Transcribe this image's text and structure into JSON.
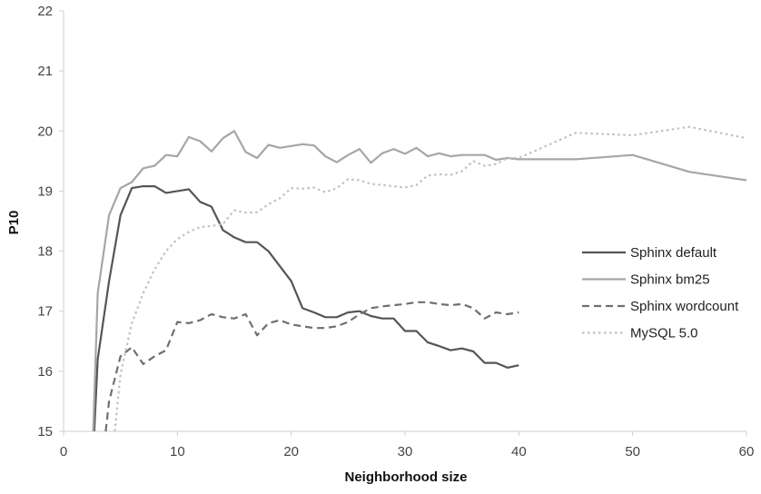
{
  "chart_data": {
    "type": "line",
    "title": "",
    "xlabel": "Neighborhood size",
    "ylabel": "P10",
    "xlim": [
      0,
      60
    ],
    "ylim": [
      15,
      22
    ],
    "x_ticks": [
      0,
      10,
      20,
      30,
      40,
      50,
      60
    ],
    "y_ticks": [
      15,
      16,
      17,
      18,
      19,
      20,
      21,
      22
    ],
    "grid": false,
    "legend_position": "right",
    "series": [
      {
        "name": "Sphinx default",
        "color": "#555555",
        "style": "solid",
        "points": [
          [
            2.7,
            15.0
          ],
          [
            3,
            16.2
          ],
          [
            4,
            17.5
          ],
          [
            5,
            18.6
          ],
          [
            6,
            19.05
          ],
          [
            7,
            19.08
          ],
          [
            8,
            19.08
          ],
          [
            9,
            18.97
          ],
          [
            10,
            19.0
          ],
          [
            11,
            19.03
          ],
          [
            12,
            18.82
          ],
          [
            13,
            18.74
          ],
          [
            14,
            18.35
          ],
          [
            15,
            18.23
          ],
          [
            16,
            18.15
          ],
          [
            17,
            18.15
          ],
          [
            18,
            18.0
          ],
          [
            19,
            17.75
          ],
          [
            20,
            17.5
          ],
          [
            21,
            17.05
          ],
          [
            22,
            16.98
          ],
          [
            23,
            16.9
          ],
          [
            24,
            16.9
          ],
          [
            25,
            16.98
          ],
          [
            26,
            17.0
          ],
          [
            27,
            16.92
          ],
          [
            28,
            16.88
          ],
          [
            29,
            16.88
          ],
          [
            30,
            16.67
          ],
          [
            31,
            16.67
          ],
          [
            32,
            16.48
          ],
          [
            33,
            16.42
          ],
          [
            34,
            16.35
          ],
          [
            35,
            16.38
          ],
          [
            36,
            16.33
          ],
          [
            37,
            16.14
          ],
          [
            38,
            16.14
          ],
          [
            39,
            16.06
          ],
          [
            40,
            16.1
          ]
        ]
      },
      {
        "name": "Sphinx bm25",
        "color": "#a6a6a6",
        "style": "solid",
        "points": [
          [
            2.6,
            15.0
          ],
          [
            3,
            17.3
          ],
          [
            4,
            18.6
          ],
          [
            5,
            19.05
          ],
          [
            6,
            19.15
          ],
          [
            7,
            19.38
          ],
          [
            8,
            19.42
          ],
          [
            9,
            19.6
          ],
          [
            10,
            19.58
          ],
          [
            11,
            19.9
          ],
          [
            12,
            19.83
          ],
          [
            13,
            19.66
          ],
          [
            14,
            19.88
          ],
          [
            15,
            20.0
          ],
          [
            16,
            19.65
          ],
          [
            17,
            19.55
          ],
          [
            18,
            19.77
          ],
          [
            19,
            19.72
          ],
          [
            20,
            19.75
          ],
          [
            21,
            19.78
          ],
          [
            22,
            19.76
          ],
          [
            23,
            19.58
          ],
          [
            24,
            19.48
          ],
          [
            25,
            19.6
          ],
          [
            26,
            19.7
          ],
          [
            27,
            19.47
          ],
          [
            28,
            19.63
          ],
          [
            29,
            19.7
          ],
          [
            30,
            19.62
          ],
          [
            31,
            19.72
          ],
          [
            32,
            19.58
          ],
          [
            33,
            19.63
          ],
          [
            34,
            19.58
          ],
          [
            35,
            19.6
          ],
          [
            36,
            19.6
          ],
          [
            37,
            19.6
          ],
          [
            38,
            19.52
          ],
          [
            39,
            19.55
          ],
          [
            40,
            19.53
          ],
          [
            45,
            19.53
          ],
          [
            50,
            19.6
          ],
          [
            55,
            19.32
          ],
          [
            60,
            19.18
          ]
        ]
      },
      {
        "name": "Sphinx wordcount",
        "color": "#6f6f6f",
        "style": "dashed",
        "points": [
          [
            3.7,
            15.0
          ],
          [
            4,
            15.5
          ],
          [
            5,
            16.25
          ],
          [
            6,
            16.4
          ],
          [
            7,
            16.12
          ],
          [
            8,
            16.25
          ],
          [
            9,
            16.35
          ],
          [
            10,
            16.82
          ],
          [
            11,
            16.8
          ],
          [
            12,
            16.85
          ],
          [
            13,
            16.95
          ],
          [
            14,
            16.9
          ],
          [
            15,
            16.88
          ],
          [
            16,
            16.95
          ],
          [
            17,
            16.6
          ],
          [
            18,
            16.8
          ],
          [
            19,
            16.85
          ],
          [
            20,
            16.78
          ],
          [
            21,
            16.75
          ],
          [
            22,
            16.72
          ],
          [
            23,
            16.72
          ],
          [
            24,
            16.75
          ],
          [
            25,
            16.82
          ],
          [
            26,
            16.95
          ],
          [
            27,
            17.05
          ],
          [
            28,
            17.08
          ],
          [
            29,
            17.1
          ],
          [
            30,
            17.12
          ],
          [
            31,
            17.15
          ],
          [
            32,
            17.15
          ],
          [
            33,
            17.12
          ],
          [
            34,
            17.1
          ],
          [
            35,
            17.12
          ],
          [
            36,
            17.05
          ],
          [
            37,
            16.88
          ],
          [
            38,
            16.98
          ],
          [
            39,
            16.95
          ],
          [
            40,
            16.98
          ]
        ]
      },
      {
        "name": "MySQL 5.0",
        "color": "#c0c0c0",
        "style": "dotted",
        "points": [
          [
            4.5,
            15.0
          ],
          [
            5,
            15.95
          ],
          [
            6,
            16.8
          ],
          [
            7,
            17.3
          ],
          [
            8,
            17.7
          ],
          [
            9,
            18.0
          ],
          [
            10,
            18.2
          ],
          [
            11,
            18.32
          ],
          [
            12,
            18.4
          ],
          [
            13,
            18.42
          ],
          [
            14,
            18.45
          ],
          [
            15,
            18.68
          ],
          [
            16,
            18.64
          ],
          [
            17,
            18.65
          ],
          [
            18,
            18.78
          ],
          [
            19,
            18.88
          ],
          [
            20,
            19.05
          ],
          [
            21,
            19.04
          ],
          [
            22,
            19.06
          ],
          [
            23,
            18.98
          ],
          [
            24,
            19.05
          ],
          [
            25,
            19.2
          ],
          [
            26,
            19.18
          ],
          [
            27,
            19.12
          ],
          [
            28,
            19.1
          ],
          [
            29,
            19.08
          ],
          [
            30,
            19.06
          ],
          [
            31,
            19.1
          ],
          [
            32,
            19.26
          ],
          [
            33,
            19.28
          ],
          [
            34,
            19.27
          ],
          [
            35,
            19.33
          ],
          [
            36,
            19.5
          ],
          [
            37,
            19.42
          ],
          [
            38,
            19.45
          ],
          [
            39,
            19.55
          ],
          [
            40,
            19.55
          ],
          [
            45,
            19.97
          ],
          [
            50,
            19.93
          ],
          [
            55,
            20.07
          ],
          [
            60,
            19.88
          ]
        ]
      }
    ]
  }
}
